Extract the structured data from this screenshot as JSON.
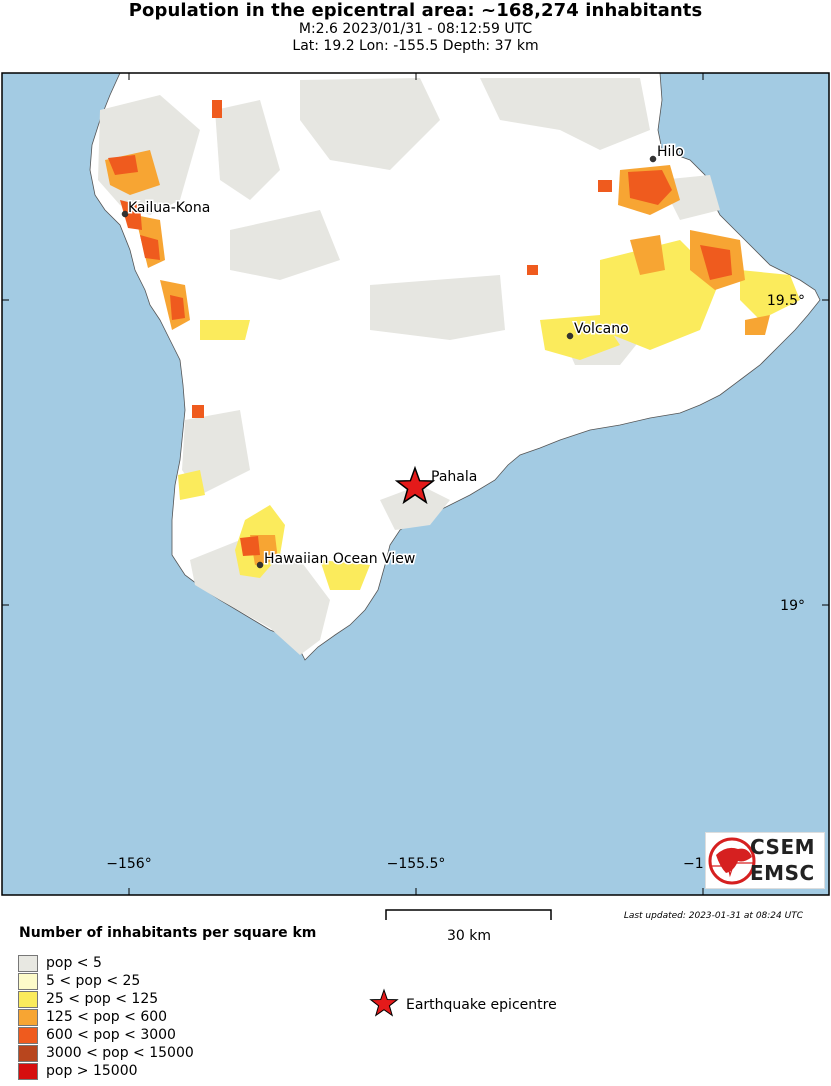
{
  "header": {
    "title": "Population in the epicentral area: ~168,274 inhabitants",
    "line1": "M:2.6 2023/01/31 - 08:12:59 UTC",
    "line2": "Lat: 19.2 Lon: -155.5 Depth: 37 km"
  },
  "map": {
    "lon_labels": [
      "−156°",
      "−155.5°",
      "−1"
    ],
    "lat_labels": [
      "19.5°",
      "19°"
    ],
    "places": [
      {
        "name": "Hilo"
      },
      {
        "name": "Kailua-Kona"
      },
      {
        "name": "Volcano"
      },
      {
        "name": "Pahala"
      },
      {
        "name": "Hawaiian Ocean View"
      }
    ],
    "epicenter": {
      "lat": 19.2,
      "lon": -155.5
    },
    "colors": {
      "ocean": "#a3cbe3",
      "land": "#ffffff",
      "low": "#e6e6e1"
    }
  },
  "scale": {
    "label": "30 km"
  },
  "updated": "Last updated: 2023-01-31 at 08:24 UTC",
  "legend": {
    "title": "Number of inhabitants per square km",
    "items": [
      {
        "label": "pop < 5",
        "color": "#e8e8e2"
      },
      {
        "label": "5 < pop < 25",
        "color": "#fdfbc9"
      },
      {
        "label": "25 < pop < 125",
        "color": "#fbeb5c"
      },
      {
        "label": "125 < pop < 600",
        "color": "#f7a533"
      },
      {
        "label": "600 < pop < 3000",
        "color": "#ef5b1e"
      },
      {
        "label": "3000 < pop < 15000",
        "color": "#b8461e"
      },
      {
        "label": "pop > 15000",
        "color": "#d60e0e"
      }
    ],
    "epicentre_label": "Earthquake epicentre"
  },
  "logo": {
    "line1": "CSEM",
    "line2": "EMSC"
  }
}
